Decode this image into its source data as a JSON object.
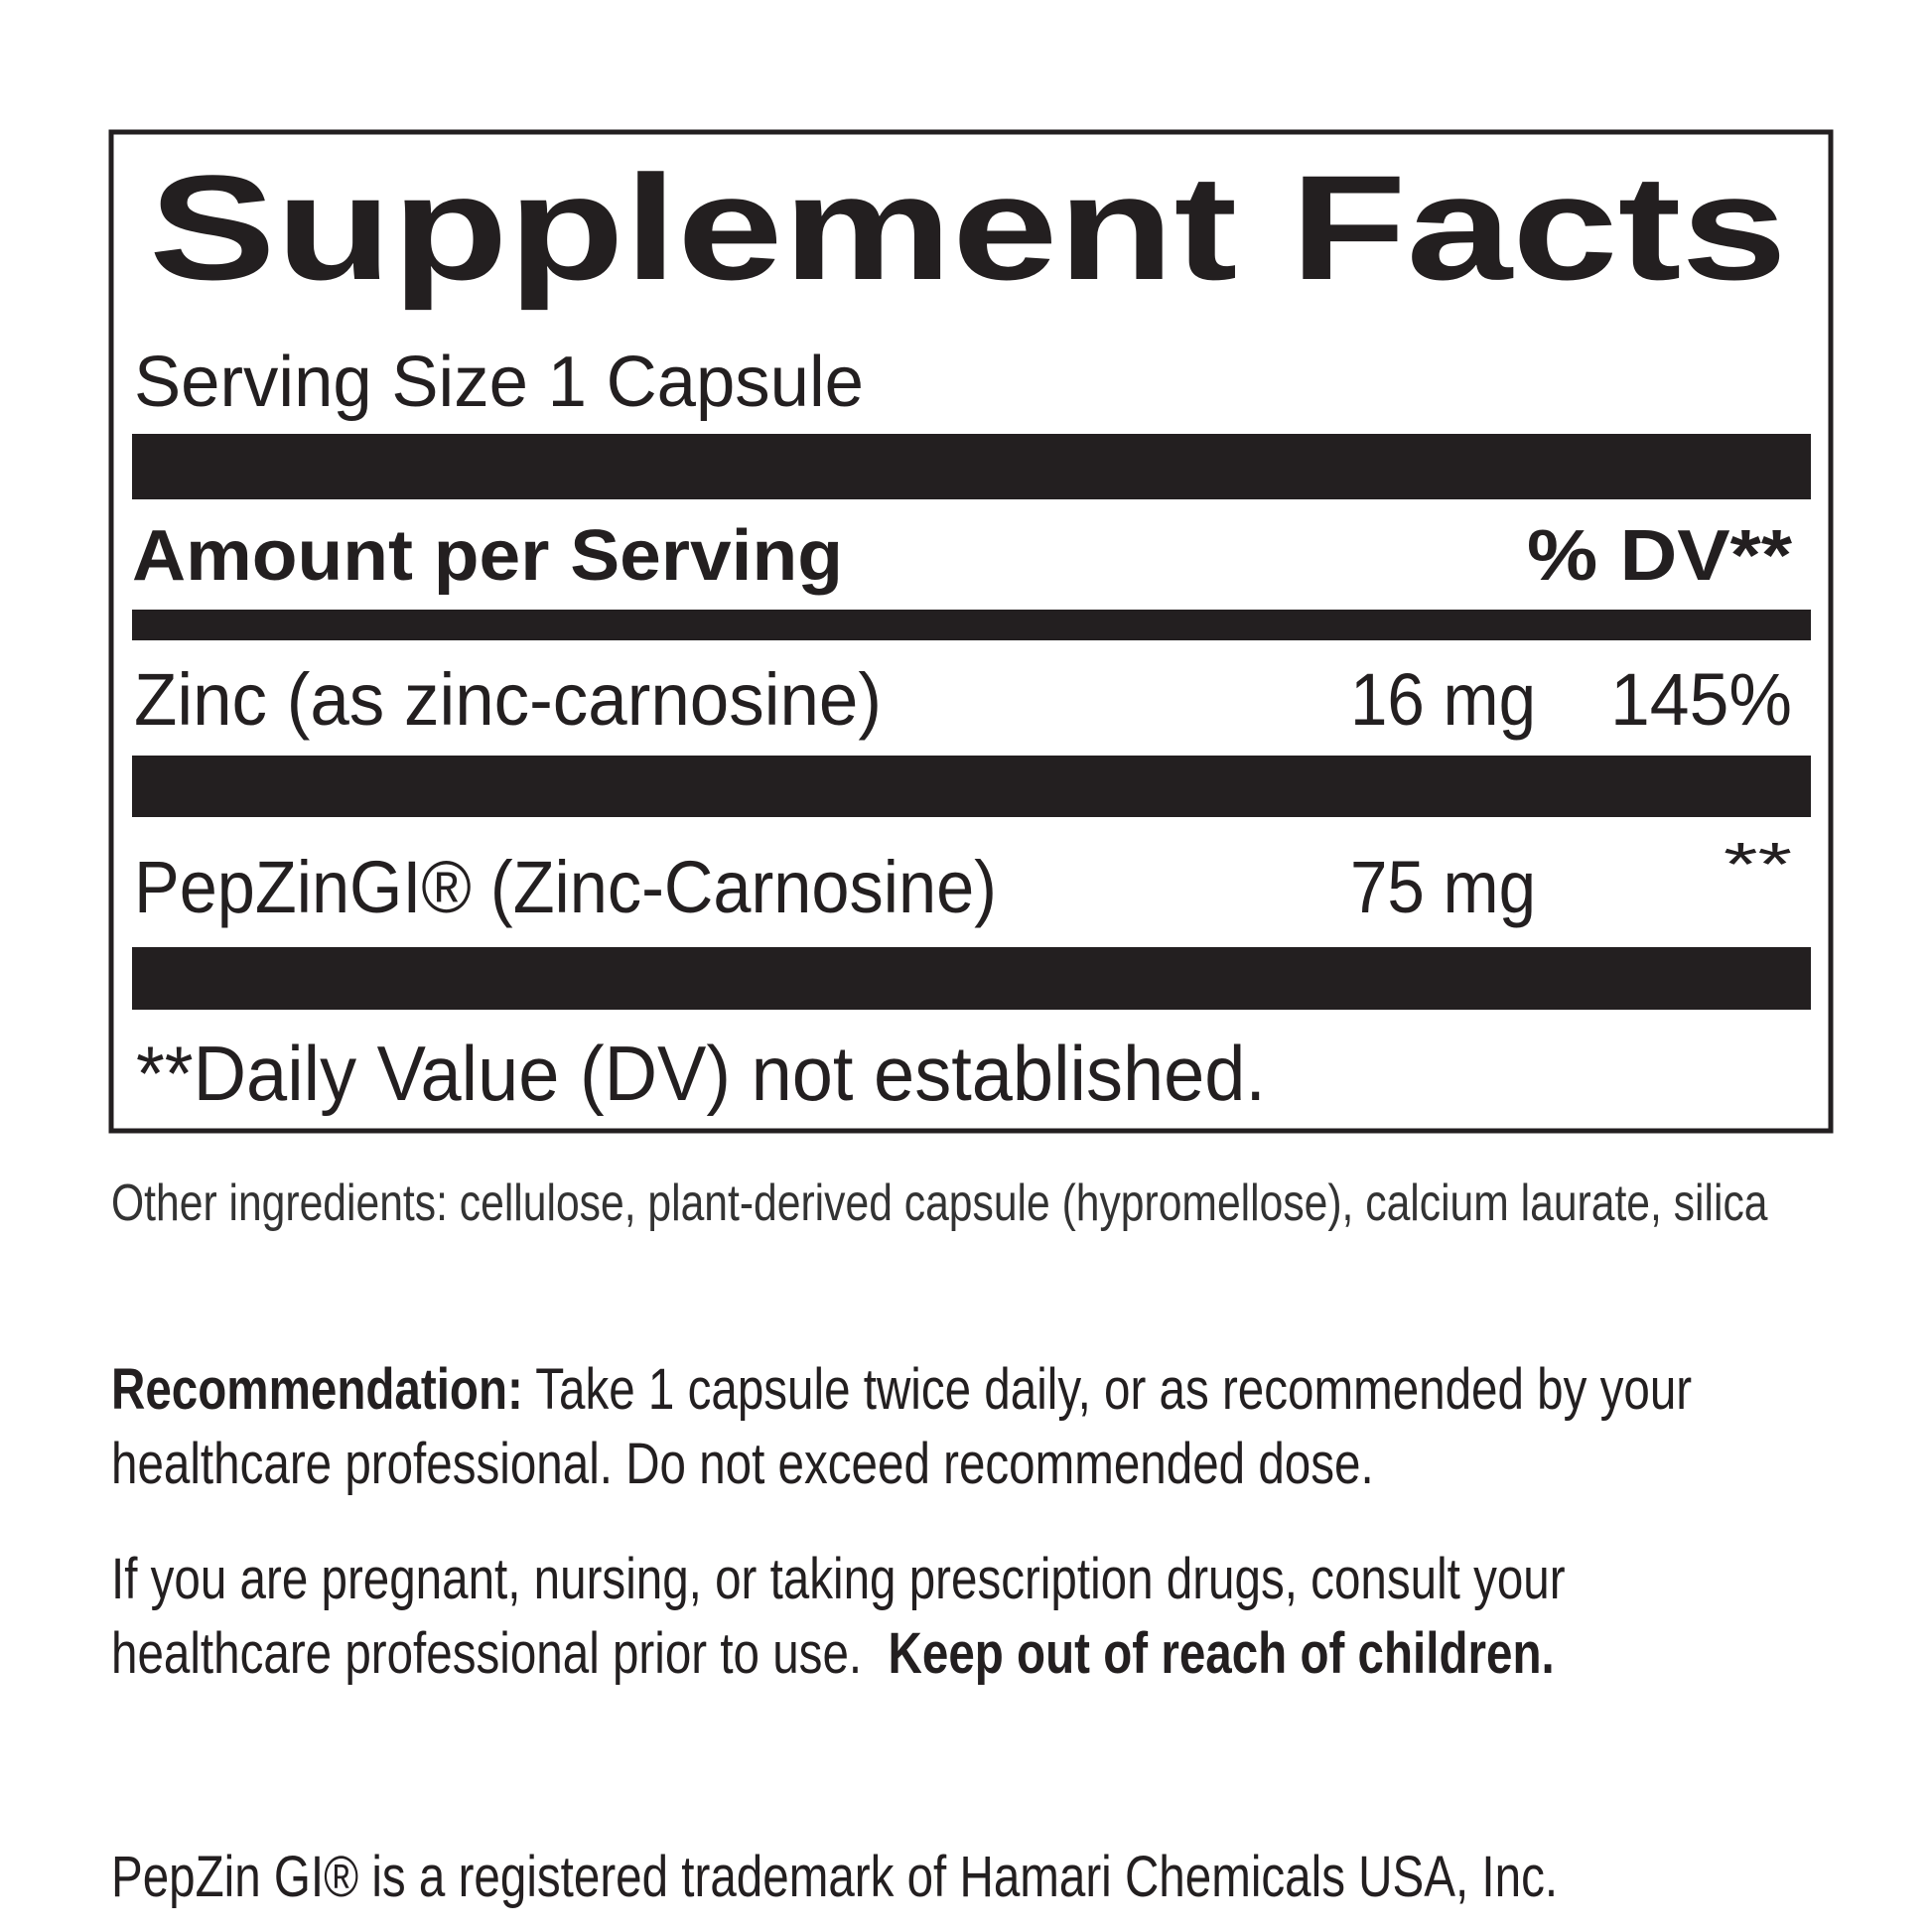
{
  "header": {
    "title": "Supplement Facts",
    "serving_size": "Serving Size 1 Capsule"
  },
  "table": {
    "header": {
      "amount": "Amount per Serving",
      "dv": "% DV**"
    },
    "rows": [
      {
        "name": "Zinc (as zinc-carnosine)",
        "amount": "16 mg",
        "dv": "145%"
      },
      {
        "name": "PepZinGI® (Zinc-Carnosine)",
        "amount": "75 mg",
        "dv": "**"
      }
    ],
    "footnote": "**Daily Value (DV) not established."
  },
  "other_ingredients": "Other ingredients: cellulose, plant-derived capsule (hypromellose), calcium laurate, silica",
  "recommendation": {
    "label": "Recommendation:",
    "text": "Take 1 capsule twice daily, or as recommended by your healthcare professional. Do not exceed recommended dose."
  },
  "warning": {
    "text": "If you are pregnant, nursing, or taking prescription drugs, consult your healthcare professional prior to use.",
    "bold": "Keep out of reach of children."
  },
  "trademark": "PepZin GI® is a registered trademark of Hamari Chemicals USA, Inc."
}
